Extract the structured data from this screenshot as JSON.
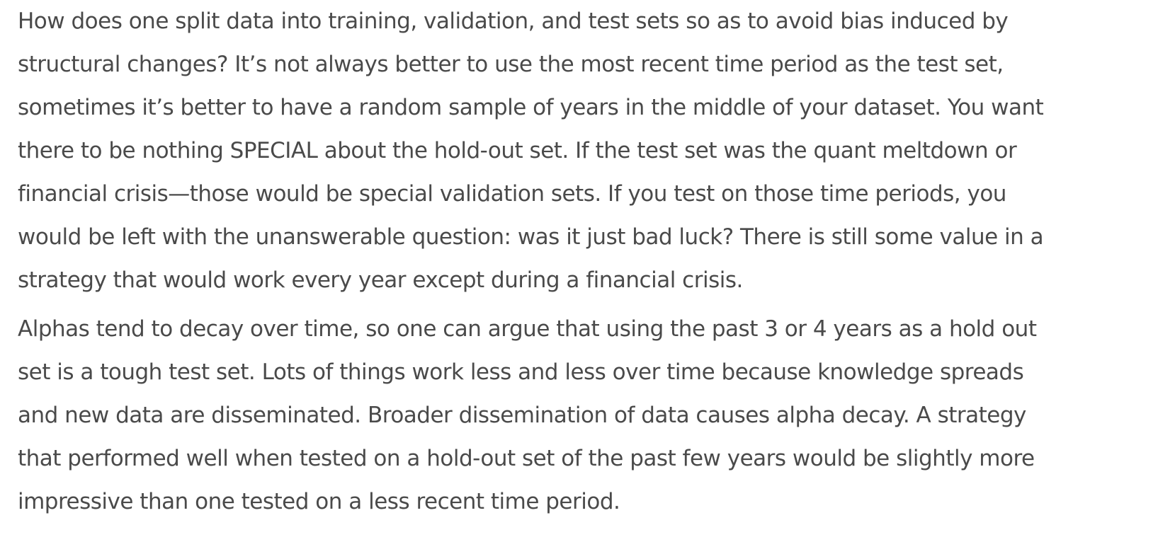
{
  "article": {
    "paragraphs": [
      {
        "lines": [
          "How does one split data into training, validation, and test sets so as to avoid bias induced by",
          "structural changes? It’s not always better to use the most recent time period as the test set,",
          "sometimes it’s better to have a random sample of years in the middle of your dataset. You want",
          "there to be nothing SPECIAL about the hold-out set. If the test set was the quant meltdown or",
          "financial crisis—those would be special validation sets. If you test on those time periods, you",
          "would be left with the unanswerable question: was it just bad luck? There is still some value in a",
          "strategy that would work every year except during a financial crisis."
        ]
      },
      {
        "lines": [
          "Alphas tend to decay over time, so one can argue that using the past 3 or 4 years as a hold out",
          "set is a tough test set. Lots of things work less and less over time because knowledge spreads",
          "and new data are disseminated. Broader dissemination of data causes alpha decay. A strategy",
          "that performed well when tested on a hold-out set of the past few years would be slightly more",
          "impressive than one tested on a less recent time period."
        ]
      }
    ]
  },
  "colors": {
    "text": "#4a4a4a",
    "background": "#ffffff"
  }
}
